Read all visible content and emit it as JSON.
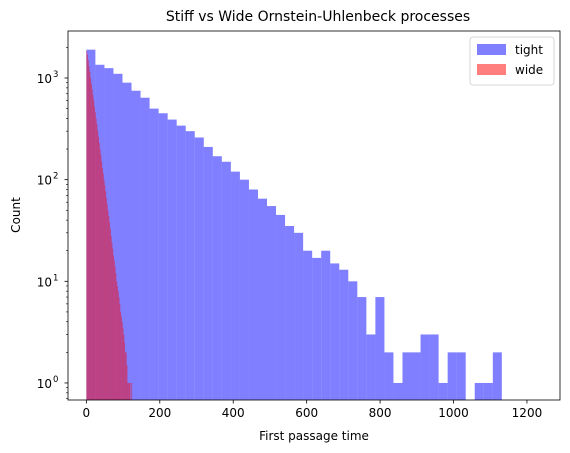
{
  "chart_data": {
    "type": "bar",
    "title": "Stiff vs Wide Ornstein-Uhlenbeck processes",
    "xlabel": "First passage time",
    "ylabel": "Count",
    "xlim": [
      -50,
      1290
    ],
    "ylim": [
      0.68,
      2900
    ],
    "yscale": "log",
    "grid": false,
    "legend_position": "top-right",
    "x_ticks": [
      0,
      200,
      400,
      600,
      800,
      1000,
      1200
    ],
    "y_ticks": [
      {
        "value": 1,
        "label": "10",
        "sup": "0"
      },
      {
        "value": 10,
        "label": "10",
        "sup": "1"
      },
      {
        "value": 100,
        "label": "10",
        "sup": "2"
      },
      {
        "value": 1000,
        "label": "10",
        "sup": "3"
      }
    ],
    "series": [
      {
        "name": "tight",
        "color": "#0000ff",
        "opacity": 0.5,
        "bin_start": 0,
        "bin_width": 24.6,
        "counts": [
          1900,
          1350,
          1250,
          1100,
          900,
          750,
          640,
          500,
          450,
          390,
          340,
          300,
          260,
          210,
          170,
          150,
          120,
          100,
          80,
          65,
          55,
          45,
          35,
          30,
          20,
          17,
          20,
          15,
          13,
          10,
          7,
          3,
          7,
          2,
          1,
          2,
          2,
          3,
          3,
          1,
          2,
          2,
          0,
          1,
          1,
          2,
          0,
          0,
          0,
          0,
          0,
          0,
          0,
          0,
          0,
          0,
          0,
          0,
          0,
          0,
          0,
          0,
          0,
          0,
          0,
          0,
          0,
          0,
          0,
          0,
          0,
          0,
          0,
          0,
          0,
          0,
          0,
          0,
          0,
          0,
          0,
          0,
          0,
          0,
          0,
          0,
          0,
          0,
          0,
          0,
          0,
          0,
          0,
          0,
          0,
          0,
          0,
          0,
          0,
          0,
          0,
          0,
          0,
          0,
          0,
          0,
          0,
          0,
          0,
          0,
          0,
          0,
          0,
          0,
          0,
          0,
          0,
          0,
          0,
          0,
          0,
          0,
          0,
          0,
          0,
          0,
          0,
          0
        ]
      },
      {
        "name": "wide",
        "color": "#ff0000",
        "opacity": 0.5,
        "bin_start": 0,
        "bin_width": 2.15,
        "counts": [
          1850,
          1700,
          1500,
          1300,
          1150,
          1000,
          880,
          770,
          680,
          600,
          520,
          460,
          400,
          350,
          300,
          265,
          230,
          200,
          175,
          150,
          130,
          115,
          100,
          88,
          77,
          66,
          58,
          50,
          44,
          38,
          33,
          28,
          24,
          21,
          18,
          16,
          14,
          12,
          10,
          9,
          8,
          7,
          6,
          5,
          4.5,
          4,
          3.5,
          3,
          2.5,
          2,
          2,
          1.5,
          1,
          1,
          1,
          1,
          0,
          1
        ]
      }
    ]
  }
}
